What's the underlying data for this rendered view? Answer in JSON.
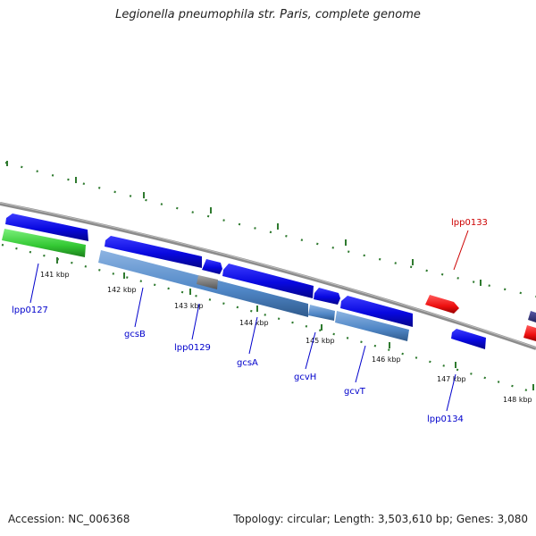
{
  "title": "Legionella pneumophila str. Paris, complete genome",
  "footer": {
    "accession": "Accession: NC_006368",
    "summary": "Topology: circular; Length: 3,503,610 bp; Genes: 3,080"
  },
  "ticks": [
    "141 kbp",
    "142 kbp",
    "143 kbp",
    "144 kbp",
    "145 kbp",
    "146 kbp",
    "147 kbp",
    "148 kbp"
  ],
  "gene_labels": [
    {
      "name": "lpp0127",
      "color": "#0000cc"
    },
    {
      "name": "gcsB",
      "color": "#0000cc"
    },
    {
      "name": "lpp0129",
      "color": "#0000cc"
    },
    {
      "name": "gcsA",
      "color": "#0000cc"
    },
    {
      "name": "gcvH",
      "color": "#0000cc"
    },
    {
      "name": "gcvT",
      "color": "#0000cc"
    },
    {
      "name": "lpp0134",
      "color": "#0000cc"
    },
    {
      "name": "lpp0133",
      "color": "#cc0000"
    }
  ],
  "colors": {
    "cds": "#0a0ae6",
    "trna": "#ff1a1a",
    "rrna": "#33cc33",
    "feature": "#4f86c6",
    "gray": "#7a7a7a",
    "tick": "#2f7a2f",
    "backbone": "#8c8c8c"
  }
}
